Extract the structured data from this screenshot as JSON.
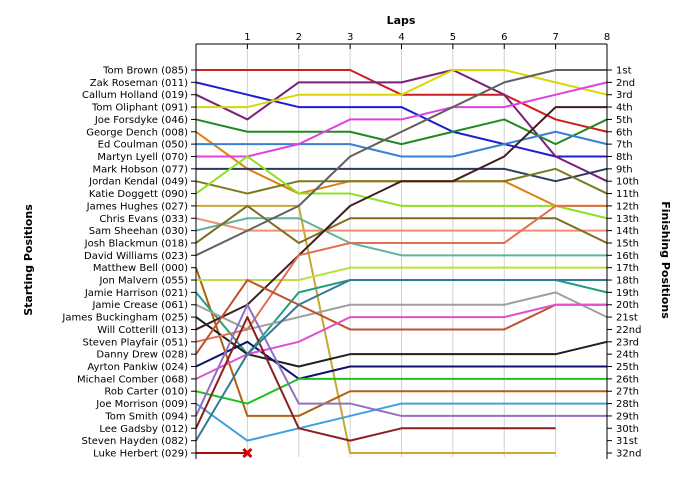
{
  "chart_data": {
    "type": "line",
    "title": "Laps",
    "ylabel_left": "Starting Positions",
    "ylabel_right": "Finishing Positions",
    "x_ticks": [
      "1",
      "2",
      "3",
      "4",
      "5",
      "6",
      "7",
      "8"
    ],
    "xlim": [
      0,
      8
    ],
    "ylim": [
      1,
      32
    ],
    "y_inverted": true,
    "starting_labels": [
      "Tom Brown (085)",
      "Zak Roseman (011)",
      "Callum Holland (019)",
      "Tom Oliphant (091)",
      "Joe Forsdyke (046)",
      "George Dench (008)",
      "Ed Coulman (050)",
      "Martyn Lyell (070)",
      "Mark Hobson (077)",
      "Jordan Kendal (049)",
      "Katie Doggett (090)",
      "James Hughes (027)",
      "Chris Evans (033)",
      "Sam Sheehan (030)",
      "Josh Blackmun (018)",
      "David Williams (023)",
      "Matthew Bell (000)",
      "Jon Malvern (055)",
      "Jamie Harrison (021)",
      "Jamie Crease (061)",
      "James Buckingham (025)",
      "Will Cotterill (013)",
      "Steven Playfair (051)",
      "Danny Drew (028)",
      "Ayrton Pankiw (024)",
      "Michael Comber (068)",
      "Rob Carter (010)",
      "Joe Morrison (009)",
      "Tom Smith (094)",
      "Lee Gadsby (012)",
      "Steven Hayden (082)",
      "Luke Herbert (029)"
    ],
    "finishing_labels": [
      "1st",
      "2nd",
      "3rd",
      "4th",
      "5th",
      "6th",
      "7th",
      "8th",
      "9th",
      "10th",
      "11th",
      "12th",
      "13th",
      "14th",
      "15th",
      "16th",
      "17th",
      "18th",
      "19th",
      "20th",
      "21st",
      "22nd",
      "23rd",
      "24th",
      "25th",
      "26th",
      "27th",
      "28th",
      "29th",
      "30th",
      "31st",
      "32nd"
    ],
    "retired_marker": {
      "lap": 1,
      "position": 32
    },
    "series": [
      {
        "color": "#cc1f1f",
        "values": [
          1,
          1,
          1,
          1,
          3,
          3,
          3,
          5,
          6
        ]
      },
      {
        "color": "#1f1fd2",
        "values": [
          2,
          3,
          4,
          4,
          4,
          6,
          7,
          8,
          8
        ]
      },
      {
        "color": "#7a1f7a",
        "values": [
          3,
          5,
          2,
          2,
          2,
          1,
          3,
          8,
          10
        ]
      },
      {
        "color": "#d8d800",
        "values": [
          4,
          4,
          3,
          3,
          3,
          1,
          1,
          2,
          3
        ]
      },
      {
        "color": "#1f8a1f",
        "values": [
          5,
          6,
          6,
          6,
          7,
          6,
          5,
          7,
          5
        ]
      },
      {
        "color": "#e07f10",
        "values": [
          6,
          9,
          11,
          10,
          10,
          10,
          10,
          12,
          12
        ]
      },
      {
        "color": "#3a7fd6",
        "values": [
          7,
          7,
          7,
          7,
          8,
          8,
          7,
          6,
          7
        ]
      },
      {
        "color": "#e040e0",
        "values": [
          8,
          8,
          7,
          5,
          5,
          4,
          4,
          3,
          2
        ]
      },
      {
        "color": "#2c3b5c",
        "values": [
          9,
          9,
          9,
          9,
          9,
          9,
          9,
          10,
          9
        ]
      },
      {
        "color": "#7a7a1f",
        "values": [
          10,
          11,
          10,
          10,
          10,
          10,
          10,
          9,
          11
        ]
      },
      {
        "color": "#8fe020",
        "values": [
          11,
          8,
          11,
          11,
          12,
          12,
          12,
          12,
          13
        ]
      },
      {
        "color": "#c8a830",
        "values": [
          12,
          12,
          12,
          32,
          32,
          32,
          32,
          32,
          null
        ]
      },
      {
        "color": "#f09070",
        "values": [
          13,
          14,
          14,
          14,
          14,
          14,
          14,
          14,
          14
        ]
      },
      {
        "color": "#5fb39a",
        "values": [
          14,
          13,
          13,
          15,
          16,
          16,
          16,
          16,
          16
        ]
      },
      {
        "color": "#7f6a1f",
        "values": [
          15,
          12,
          15,
          13,
          13,
          13,
          13,
          13,
          15
        ]
      },
      {
        "color": "#606060",
        "values": [
          16,
          14,
          12,
          8,
          6,
          4,
          2,
          1,
          1
        ]
      },
      {
        "color": "#b06010",
        "values": [
          17,
          29,
          29,
          27,
          27,
          27,
          27,
          27,
          27
        ]
      },
      {
        "color": "#b8e040",
        "values": [
          18,
          18,
          18,
          17,
          17,
          17,
          17,
          17,
          17
        ]
      },
      {
        "color": "#20a080",
        "values": [
          19,
          24,
          19,
          18,
          18,
          18,
          18,
          18,
          19
        ]
      },
      {
        "color": "#a0a0a0",
        "values": [
          20,
          22,
          21,
          20,
          20,
          20,
          20,
          19,
          21
        ]
      },
      {
        "color": "#1f1f1f",
        "values": [
          21,
          24,
          25,
          24,
          24,
          24,
          24,
          24,
          23
        ]
      },
      {
        "color": "#401f1f",
        "values": [
          22,
          20,
          16,
          12,
          10,
          10,
          8,
          4,
          4
        ]
      },
      {
        "color": "#e07050",
        "values": [
          23,
          22,
          16,
          15,
          15,
          15,
          15,
          12,
          12
        ]
      },
      {
        "color": "#c05030",
        "values": [
          24,
          18,
          20,
          22,
          22,
          22,
          22,
          20,
          20
        ]
      },
      {
        "color": "#101070",
        "values": [
          25,
          23,
          26,
          25,
          25,
          25,
          25,
          25,
          25
        ]
      },
      {
        "color": "#e050d0",
        "values": [
          26,
          24,
          23,
          21,
          21,
          21,
          21,
          20,
          20
        ]
      },
      {
        "color": "#20c020",
        "values": [
          27,
          28,
          26,
          26,
          26,
          26,
          26,
          26,
          26
        ]
      },
      {
        "color": "#40a0e0",
        "values": [
          28,
          31,
          30,
          29,
          28,
          28,
          28,
          28,
          28
        ]
      },
      {
        "color": "#9070c0",
        "values": [
          29,
          20,
          28,
          28,
          29,
          29,
          29,
          29,
          29
        ]
      },
      {
        "color": "#8b1f1f",
        "values": [
          30,
          21,
          30,
          31,
          30,
          30,
          30,
          30,
          null
        ]
      },
      {
        "color": "#307a9a",
        "values": [
          31,
          24,
          20,
          18,
          18,
          18,
          18,
          18,
          18
        ]
      },
      {
        "color": "#a01010",
        "values": [
          32,
          32,
          null,
          null,
          null,
          null,
          null,
          null,
          null
        ]
      }
    ]
  }
}
